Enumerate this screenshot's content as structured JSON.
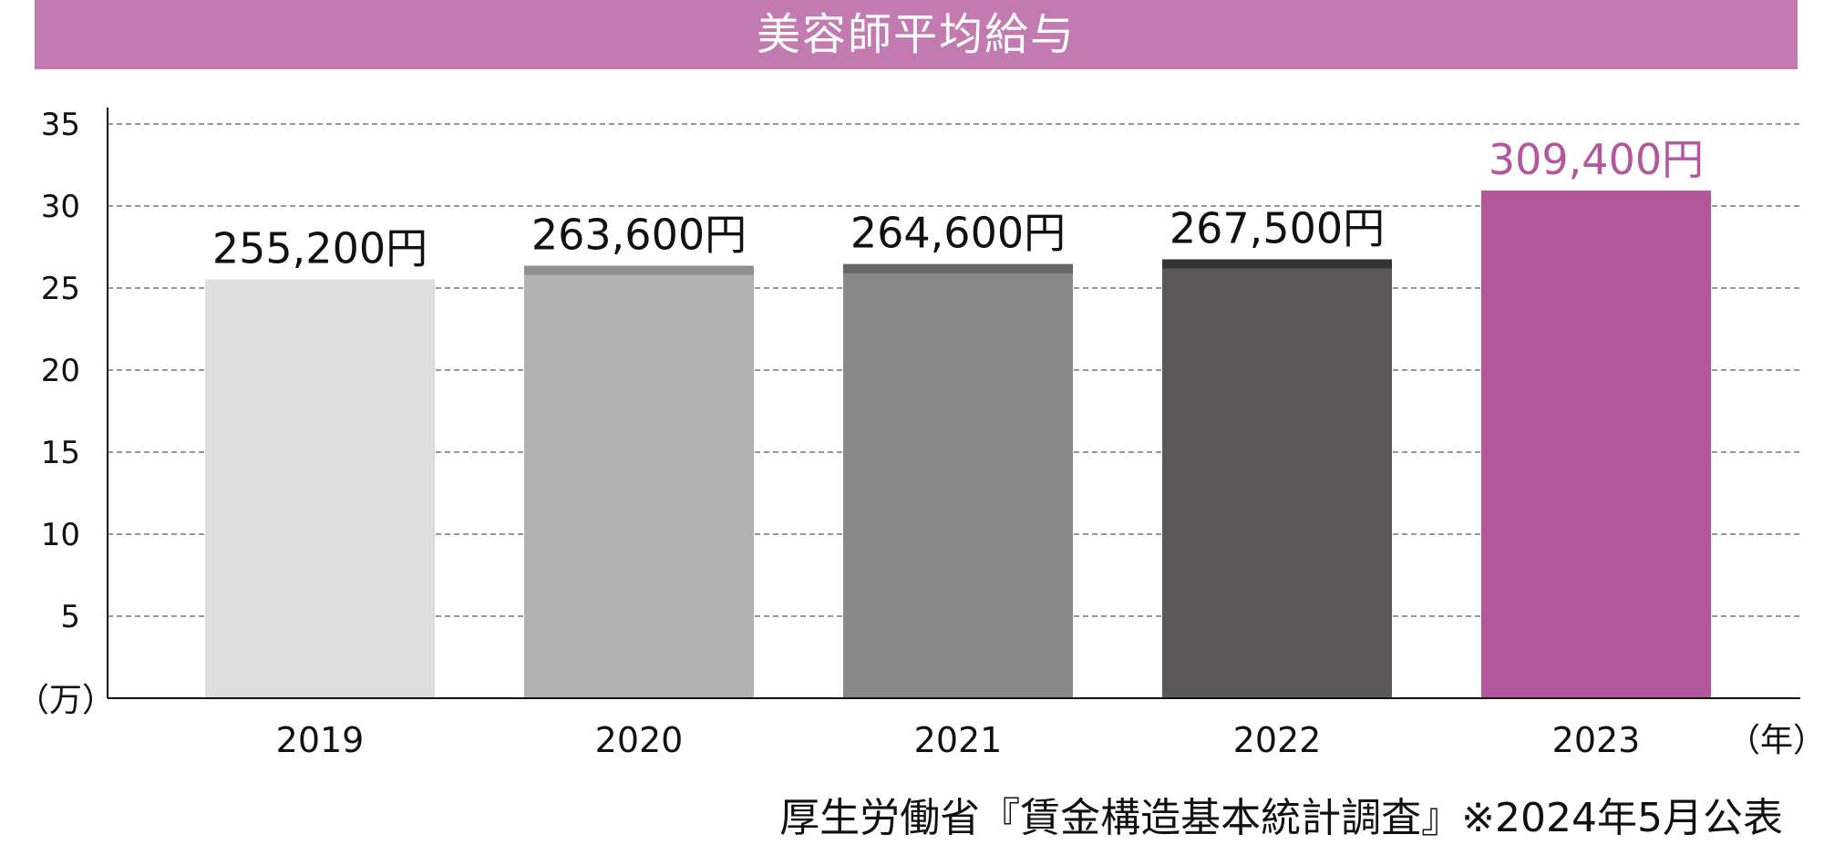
{
  "chart_data": {
    "type": "bar",
    "title": "美容師平均給与",
    "categories": [
      "2019",
      "2020",
      "2021",
      "2022",
      "2023"
    ],
    "values": [
      255200,
      263600,
      264600,
      267500,
      309400
    ],
    "value_labels": [
      "255,200円",
      "263,600円",
      "264,600円",
      "267,500円",
      "309,400円"
    ],
    "bar_colors": [
      "#dddddd",
      "#b2b2b2",
      "#888888",
      "#5a5858",
      "#b3569b"
    ],
    "cap_colors": [
      "#dddddd",
      "#8f8f8f",
      "#666666",
      "#333333",
      "#b3569b"
    ],
    "label_colors": [
      "#111111",
      "#111111",
      "#111111",
      "#111111",
      "#b3569b"
    ],
    "y_ticks": [
      5,
      10,
      15,
      20,
      25,
      30,
      35
    ],
    "ylim": [
      0,
      36
    ],
    "y_unit": 10000,
    "ylabel": "（万）",
    "xlabel": "（年）",
    "grid": true,
    "source": "厚生労働省『賃金構造基本統計調査』※2024年5月公表"
  }
}
